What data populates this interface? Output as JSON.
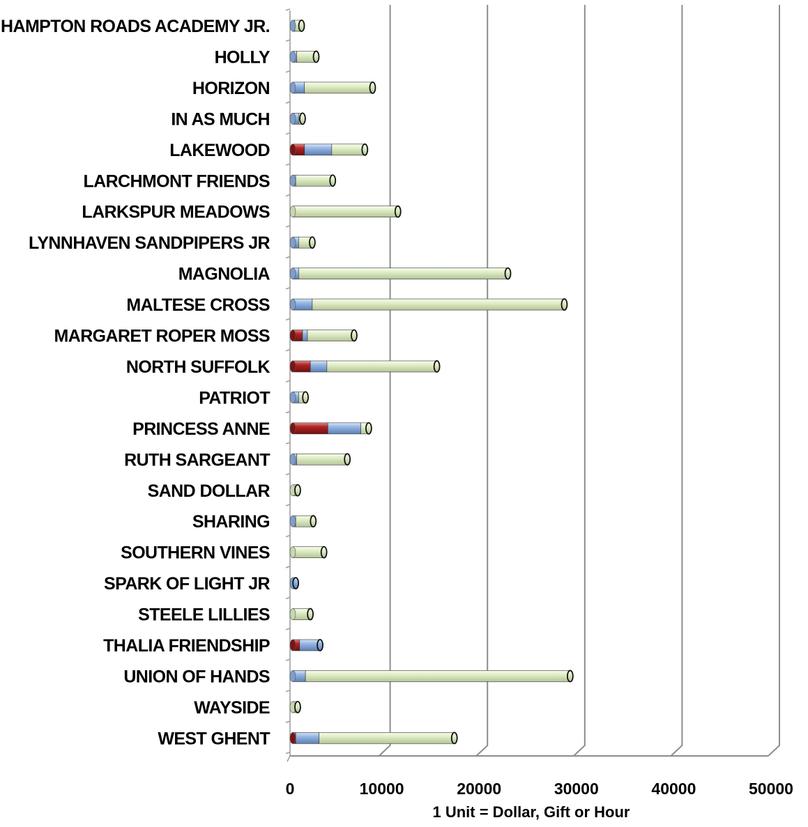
{
  "chart_data": {
    "type": "bar",
    "orientation": "horizontal",
    "stacked": true,
    "style": "3d-cylinder",
    "xlabel": "1 Unit = Dollar, Gift or Hour",
    "ylabel": "",
    "xlim": [
      0,
      50000
    ],
    "xticks": [
      "0",
      "10000",
      "20000",
      "30000",
      "40000",
      "50000"
    ],
    "grid": true,
    "legend": "none",
    "categories": [
      "HAMPTON ROADS ACADEMY JR.",
      "HOLLY",
      "HORIZON",
      "IN AS MUCH",
      "LAKEWOOD",
      "LARCHMONT FRIENDS",
      "LARKSPUR MEADOWS",
      "LYNNHAVEN SANDPIPERS JR",
      "MAGNOLIA",
      "MALTESE CROSS",
      "MARGARET ROPER MOSS",
      "NORTH SUFFOLK",
      "PATRIOT",
      "PRINCESS ANNE",
      "RUTH SARGEANT",
      "SAND DOLLAR",
      "SHARING",
      "SOUTHERN VINES",
      "SPARK OF LIGHT JR",
      "STEELE LILLIES",
      "THALIA FRIENDSHIP",
      "UNION OF HANDS",
      "WAYSIDE",
      "WEST GHENT"
    ],
    "series": [
      {
        "color": "#9b1c1c",
        "values": [
          0,
          0,
          0,
          0,
          1200,
          0,
          0,
          0,
          0,
          0,
          1000,
          1800,
          0,
          3600,
          0,
          0,
          0,
          0,
          0,
          0,
          700,
          0,
          0,
          300
        ]
      },
      {
        "color": "#8fb2e0",
        "values": [
          200,
          400,
          1200,
          600,
          2800,
          300,
          0,
          600,
          600,
          2000,
          500,
          1700,
          600,
          3400,
          400,
          0,
          300,
          0,
          300,
          0,
          2100,
          1300,
          0,
          2400
        ]
      },
      {
        "color": "#dfeec4",
        "values": [
          700,
          2000,
          7000,
          400,
          3400,
          3800,
          10800,
          1400,
          21500,
          25900,
          4800,
          11300,
          700,
          800,
          5200,
          500,
          1800,
          3200,
          0,
          1800,
          0,
          27200,
          500,
          13900
        ]
      }
    ]
  }
}
